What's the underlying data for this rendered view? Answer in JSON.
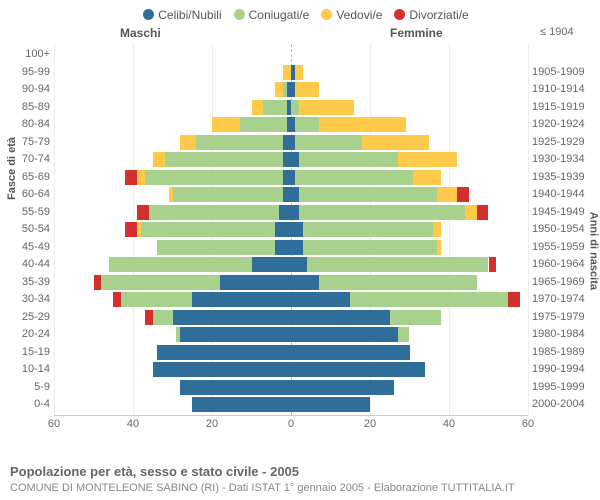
{
  "title": "Popolazione per età, sesso e stato civile - 2005",
  "subtitle": "COMUNE DI MONTELEONE SABINO (RI) - Dati ISTAT 1° gennaio 2005 - Elaborazione TUTTITALIA.IT",
  "y_axis_left": "Fasce di età",
  "y_axis_right": "Anni di nascita",
  "header_male": "Maschi",
  "header_female": "Femmine",
  "legend": [
    {
      "label": "Celibi/Nubili",
      "color": "#2f6e9b"
    },
    {
      "label": "Coniugati/e",
      "color": "#a9d18e"
    },
    {
      "label": "Vedovi/e",
      "color": "#ffc94a"
    },
    {
      "label": "Divorziati/e",
      "color": "#d22f2f"
    }
  ],
  "colors": {
    "single": "#2f6e9b",
    "married": "#a9d18e",
    "widowed": "#ffc94a",
    "divorced": "#d22f2f",
    "grid": "#eeeeee",
    "axis": "#cccccc",
    "center": "#bbbbbb",
    "text": "#666666"
  },
  "xmax": 60,
  "xticks": [
    60,
    40,
    20,
    0,
    20,
    40,
    60
  ],
  "rows": [
    {
      "age": "100+",
      "birth": "≤ 1904",
      "m": {
        "s": 0,
        "c": 0,
        "w": 0,
        "d": 0
      },
      "f": {
        "s": 0,
        "c": 0,
        "w": 0,
        "d": 0
      }
    },
    {
      "age": "95-99",
      "birth": "1905-1909",
      "m": {
        "s": 0,
        "c": 0,
        "w": 2,
        "d": 0
      },
      "f": {
        "s": 1,
        "c": 0,
        "w": 2,
        "d": 0
      }
    },
    {
      "age": "90-94",
      "birth": "1910-1914",
      "m": {
        "s": 1,
        "c": 1,
        "w": 2,
        "d": 0
      },
      "f": {
        "s": 1,
        "c": 0,
        "w": 6,
        "d": 0
      }
    },
    {
      "age": "85-89",
      "birth": "1915-1919",
      "m": {
        "s": 1,
        "c": 6,
        "w": 3,
        "d": 0
      },
      "f": {
        "s": 0,
        "c": 2,
        "w": 14,
        "d": 0
      }
    },
    {
      "age": "80-84",
      "birth": "1920-1924",
      "m": {
        "s": 1,
        "c": 12,
        "w": 7,
        "d": 0
      },
      "f": {
        "s": 1,
        "c": 6,
        "w": 22,
        "d": 0
      }
    },
    {
      "age": "75-79",
      "birth": "1925-1929",
      "m": {
        "s": 2,
        "c": 22,
        "w": 4,
        "d": 0
      },
      "f": {
        "s": 1,
        "c": 17,
        "w": 17,
        "d": 0
      }
    },
    {
      "age": "70-74",
      "birth": "1930-1934",
      "m": {
        "s": 2,
        "c": 30,
        "w": 3,
        "d": 0
      },
      "f": {
        "s": 2,
        "c": 25,
        "w": 15,
        "d": 0
      }
    },
    {
      "age": "65-69",
      "birth": "1935-1939",
      "m": {
        "s": 2,
        "c": 35,
        "w": 2,
        "d": 3
      },
      "f": {
        "s": 1,
        "c": 30,
        "w": 7,
        "d": 0
      }
    },
    {
      "age": "60-64",
      "birth": "1940-1944",
      "m": {
        "s": 2,
        "c": 28,
        "w": 1,
        "d": 0
      },
      "f": {
        "s": 2,
        "c": 35,
        "w": 5,
        "d": 3
      }
    },
    {
      "age": "55-59",
      "birth": "1945-1949",
      "m": {
        "s": 3,
        "c": 33,
        "w": 0,
        "d": 3
      },
      "f": {
        "s": 2,
        "c": 42,
        "w": 3,
        "d": 3
      }
    },
    {
      "age": "50-54",
      "birth": "1950-1954",
      "m": {
        "s": 4,
        "c": 34,
        "w": 1,
        "d": 3
      },
      "f": {
        "s": 3,
        "c": 33,
        "w": 2,
        "d": 0
      }
    },
    {
      "age": "45-49",
      "birth": "1955-1959",
      "m": {
        "s": 4,
        "c": 30,
        "w": 0,
        "d": 0
      },
      "f": {
        "s": 3,
        "c": 34,
        "w": 1,
        "d": 0
      }
    },
    {
      "age": "40-44",
      "birth": "1960-1964",
      "m": {
        "s": 10,
        "c": 36,
        "w": 0,
        "d": 0
      },
      "f": {
        "s": 4,
        "c": 46,
        "w": 0,
        "d": 2
      }
    },
    {
      "age": "35-39",
      "birth": "1965-1969",
      "m": {
        "s": 18,
        "c": 30,
        "w": 0,
        "d": 2
      },
      "f": {
        "s": 7,
        "c": 40,
        "w": 0,
        "d": 0
      }
    },
    {
      "age": "30-34",
      "birth": "1970-1974",
      "m": {
        "s": 25,
        "c": 18,
        "w": 0,
        "d": 2
      },
      "f": {
        "s": 15,
        "c": 40,
        "w": 0,
        "d": 3
      }
    },
    {
      "age": "25-29",
      "birth": "1975-1979",
      "m": {
        "s": 30,
        "c": 5,
        "w": 0,
        "d": 2
      },
      "f": {
        "s": 25,
        "c": 13,
        "w": 0,
        "d": 0
      }
    },
    {
      "age": "20-24",
      "birth": "1980-1984",
      "m": {
        "s": 28,
        "c": 1,
        "w": 0,
        "d": 0
      },
      "f": {
        "s": 27,
        "c": 3,
        "w": 0,
        "d": 0
      }
    },
    {
      "age": "15-19",
      "birth": "1985-1989",
      "m": {
        "s": 34,
        "c": 0,
        "w": 0,
        "d": 0
      },
      "f": {
        "s": 30,
        "c": 0,
        "w": 0,
        "d": 0
      }
    },
    {
      "age": "10-14",
      "birth": "1990-1994",
      "m": {
        "s": 35,
        "c": 0,
        "w": 0,
        "d": 0
      },
      "f": {
        "s": 34,
        "c": 0,
        "w": 0,
        "d": 0
      }
    },
    {
      "age": "5-9",
      "birth": "1995-1999",
      "m": {
        "s": 28,
        "c": 0,
        "w": 0,
        "d": 0
      },
      "f": {
        "s": 26,
        "c": 0,
        "w": 0,
        "d": 0
      }
    },
    {
      "age": "0-4",
      "birth": "2000-2004",
      "m": {
        "s": 25,
        "c": 0,
        "w": 0,
        "d": 0
      },
      "f": {
        "s": 20,
        "c": 0,
        "w": 0,
        "d": 0
      }
    }
  ]
}
